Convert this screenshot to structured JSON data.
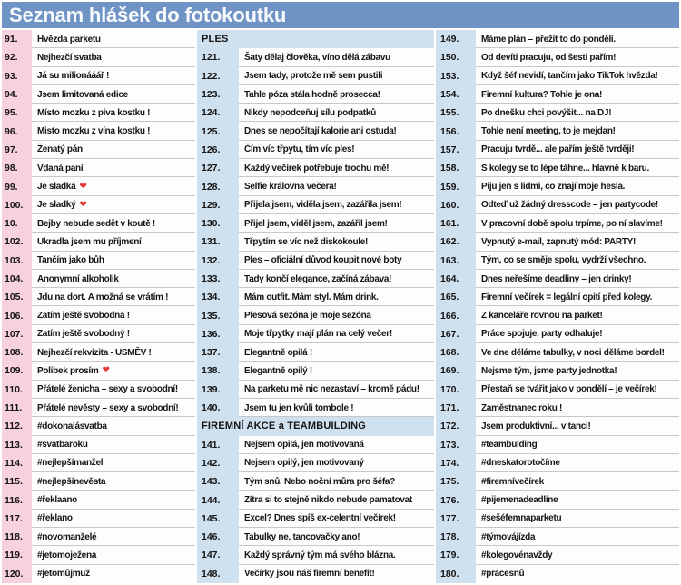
{
  "title": "Seznam hlášek do fotokoutku",
  "colors": {
    "header_bar": "#6f93c4",
    "pink_gutter": "#f8d1de",
    "blue_gutter": "#cfe0ef",
    "cell_bg": "#fdfdfe",
    "separator": "#c8c8c8",
    "text": "#141414",
    "heart": "#e53935"
  },
  "columns": [
    {
      "accent": "pink",
      "rows": [
        {
          "n": "91.",
          "t": "Hvězda parketu"
        },
        {
          "n": "92.",
          "t": "Nejhezčí svatba"
        },
        {
          "n": "93.",
          "t": "Já su milionááář !"
        },
        {
          "n": "94.",
          "t": "Jsem limitovaná edice"
        },
        {
          "n": "95.",
          "t": "Místo mozku z piva kostku !"
        },
        {
          "n": "96.",
          "t": "Misto mozku z vína kostku !"
        },
        {
          "n": "97.",
          "t": "Ženatý pán"
        },
        {
          "n": "98.",
          "t": "Vdaná paní"
        },
        {
          "n": "99.",
          "t": "Je sladká",
          "heart": true
        },
        {
          "n": "100.",
          "t": "Je sladký",
          "heart": true
        },
        {
          "n": "10.",
          "t": "Bejby nebude sedět v koutě !"
        },
        {
          "n": "102.",
          "t": "Ukradla jsem mu příjmení"
        },
        {
          "n": "103.",
          "t": "Tančím jako bůh"
        },
        {
          "n": "104.",
          "t": "Anonymní alkoholik"
        },
        {
          "n": "105.",
          "t": "Jdu na dort. A možná se vrátím !"
        },
        {
          "n": "106.",
          "t": "Zatím ještě svobodná !"
        },
        {
          "n": "107.",
          "t": "Zatím ještě svobodný !"
        },
        {
          "n": "108.",
          "t": "Nejhezčí rekvizita - USMĚV !"
        },
        {
          "n": "109.",
          "t": "Polibek prosím",
          "heart": true
        },
        {
          "n": "110.",
          "t": "Přátelé ženicha – sexy a svobodní!"
        },
        {
          "n": "111.",
          "t": "Přátelé nevěsty – sexy a svobodní!"
        },
        {
          "n": "112.",
          "t": "#dokonalásvatba"
        },
        {
          "n": "113.",
          "t": "#svatbaroku"
        },
        {
          "n": "114.",
          "t": "#nejlepšímanžel"
        },
        {
          "n": "115.",
          "t": "#nejlepšínevěsta"
        },
        {
          "n": "116.",
          "t": "#řeklaano"
        },
        {
          "n": "117.",
          "t": "#řeklano"
        },
        {
          "n": "118.",
          "t": "#novomanželé"
        },
        {
          "n": "119.",
          "t": "#jetomoježena"
        },
        {
          "n": "120.",
          "t": "#jetomůjmuž"
        }
      ]
    },
    {
      "accent": "blue",
      "rows": [
        {
          "section": "PLES"
        },
        {
          "n": "121.",
          "t": "Šaty dělaj člověka, víno dělá zábavu"
        },
        {
          "n": "122.",
          "t": "Jsem tady, protože mě sem pustili"
        },
        {
          "n": "123.",
          "t": "Tahle póza stála hodně prosecca!"
        },
        {
          "n": "124.",
          "t": "Nikdy nepodceňuj sílu podpatků"
        },
        {
          "n": "125.",
          "t": "Dnes se nepočítají kalorie ani ostuda!"
        },
        {
          "n": "126.",
          "t": "Čím víc třpytu, tím víc ples!"
        },
        {
          "n": "127.",
          "t": "Každý večírek potřebuje trochu mě!"
        },
        {
          "n": "128.",
          "t": "Selfie královna večera!"
        },
        {
          "n": "129.",
          "t": "Přijela jsem, viděla jsem, zazářila jsem!"
        },
        {
          "n": "130.",
          "t": "Přijel jsem, viděl jsem, zazářil jsem!"
        },
        {
          "n": "131.",
          "t": "Třpytím se víc než diskokoule!"
        },
        {
          "n": "132.",
          "t": "Ples – oficiální důvod koupit nové boty"
        },
        {
          "n": "133.",
          "t": "Tady končí elegance, začíná zábava!"
        },
        {
          "n": "134.",
          "t": "Mám outfit. Mám styl. Mám drink."
        },
        {
          "n": "135.",
          "t": "Plesová sezóna je moje sezóna"
        },
        {
          "n": "136.",
          "t": "Moje třpytky mají plán na celý večer!"
        },
        {
          "n": "137.",
          "t": "Elegantně opilá !"
        },
        {
          "n": "138.",
          "t": "Elegantně opilý !"
        },
        {
          "n": "139.",
          "t": "Na parketu mě nic nezastaví – kromě pádu!"
        },
        {
          "n": "140.",
          "t": "Jsem tu jen kvůli tombole !"
        },
        {
          "section": "FIREMNÍ AKCE a TEAMBUILDING"
        },
        {
          "n": "141.",
          "t": "Nejsem opilá, jen motivovaná"
        },
        {
          "n": "142.",
          "t": "Nejsem opilý, jen motivovaný"
        },
        {
          "n": "143.",
          "t": "Tým snů. Nebo noční můra pro šéfa?"
        },
        {
          "n": "144.",
          "t": "Zítra si to stejně nikdo nebude pamatovat"
        },
        {
          "n": "145.",
          "t": "Excel? Dnes spíš ex-celentní večírek!"
        },
        {
          "n": "146.",
          "t": "Tabulky ne, tancovačky ano!"
        },
        {
          "n": "147.",
          "t": "Každý správný tým má svého blázna."
        },
        {
          "n": "148.",
          "t": "Večírky jsou náš firemní benefit!"
        }
      ]
    },
    {
      "accent": "blue",
      "rows": [
        {
          "n": "149.",
          "t": "Máme plán – přežít to do pondělí."
        },
        {
          "n": "150.",
          "t": "Od devíti pracuju, od šesti pařím!"
        },
        {
          "n": "153.",
          "t": "Když šéf nevidí, tančím jako TikTok hvězda!"
        },
        {
          "n": "154.",
          "t": "Firemní kultura? Tohle je ona!"
        },
        {
          "n": "155.",
          "t": "Po dnešku chci povýšit... na DJ!"
        },
        {
          "n": "156.",
          "t": "Tohle není meeting, to je mejdan!"
        },
        {
          "n": "157.",
          "t": "Pracuju tvrdě... ale pařím ještě tvrději!"
        },
        {
          "n": "158.",
          "t": "S kolegy se to lépe táhne... hlavně k baru."
        },
        {
          "n": "159.",
          "t": "Piju jen s lidmi, co znají moje hesla."
        },
        {
          "n": "160.",
          "t": "Odteď už žádný dresscode – jen partycode!"
        },
        {
          "n": "161.",
          "t": "V pracovní době spolu trpíme, po ní slavíme!"
        },
        {
          "n": "162.",
          "t": "Vypnutý e-mail, zapnutý mód: PARTY!"
        },
        {
          "n": "163.",
          "t": "Tým, co se směje spolu, vydrží všechno."
        },
        {
          "n": "164.",
          "t": "Dnes neřešíme deadliny – jen drinky!"
        },
        {
          "n": "165.",
          "t": "Firemní večírek = legální opití před kolegy."
        },
        {
          "n": "166.",
          "t": "Z kanceláře rovnou na parket!"
        },
        {
          "n": "167.",
          "t": "Práce spojuje, party odhaluje!"
        },
        {
          "n": "168.",
          "t": "Ve dne děláme tabulky, v noci děláme bordel!"
        },
        {
          "n": "169.",
          "t": "Nejsme tým, jsme party jednotka!"
        },
        {
          "n": "170.",
          "t": "Přestaň se tvářit jako v pondělí – je večírek!"
        },
        {
          "n": "171.",
          "t": "Zaměstnanec roku !"
        },
        {
          "n": "172.",
          "t": "Jsem produktivní... v tanci!"
        },
        {
          "n": "173.",
          "t": "#teambulding"
        },
        {
          "n": "174.",
          "t": "#dneskatorotočíme"
        },
        {
          "n": "175.",
          "t": "#firemnívečírek"
        },
        {
          "n": "176.",
          "t": "#pijemenadeadline"
        },
        {
          "n": "177.",
          "t": "#sešéfemnaparketu"
        },
        {
          "n": "178.",
          "t": "#týmovájízda"
        },
        {
          "n": "179.",
          "t": "#kolegovénavždy"
        },
        {
          "n": "180.",
          "t": "#prácesnů"
        }
      ]
    }
  ]
}
